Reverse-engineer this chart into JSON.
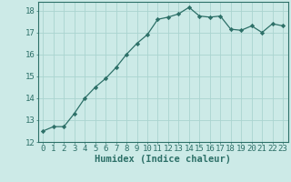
{
  "x": [
    0,
    1,
    2,
    3,
    4,
    5,
    6,
    7,
    8,
    9,
    10,
    11,
    12,
    13,
    14,
    15,
    16,
    17,
    18,
    19,
    20,
    21,
    22,
    23
  ],
  "y": [
    12.5,
    12.7,
    12.7,
    13.3,
    14.0,
    14.5,
    14.9,
    15.4,
    16.0,
    16.5,
    16.9,
    17.6,
    17.7,
    17.85,
    18.15,
    17.75,
    17.7,
    17.75,
    17.15,
    17.1,
    17.3,
    17.0,
    17.4,
    17.3
  ],
  "line_color": "#2d7068",
  "marker": "D",
  "marker_size": 2.2,
  "bg_color": "#cceae7",
  "grid_color": "#aad4d0",
  "tick_color": "#2d7068",
  "label_color": "#2d7068",
  "xlabel": "Humidex (Indice chaleur)",
  "ylim": [
    12,
    18.4
  ],
  "yticks": [
    12,
    13,
    14,
    15,
    16,
    17,
    18
  ],
  "xticks": [
    0,
    1,
    2,
    3,
    4,
    5,
    6,
    7,
    8,
    9,
    10,
    11,
    12,
    13,
    14,
    15,
    16,
    17,
    18,
    19,
    20,
    21,
    22,
    23
  ],
  "font_size": 6.5,
  "xlabel_font_size": 7.5
}
